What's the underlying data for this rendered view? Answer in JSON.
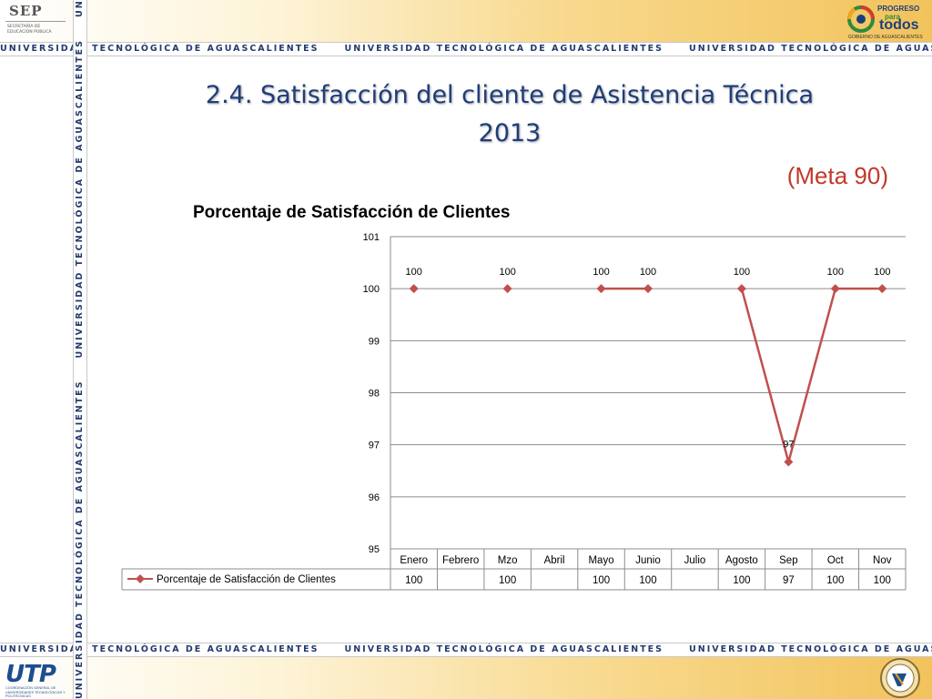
{
  "banner": {
    "text": "UNIVERSIDAD TECNOLÓGICA DE AGUASCALIENTES"
  },
  "logos": {
    "sep": {
      "title": "SEP",
      "subtitle_line1": "SECRETARÍA DE",
      "subtitle_line2": "EDUCACIÓN PÚBLICA"
    },
    "progreso": {
      "line1": "PROGRESO",
      "line2": "para",
      "line3": "todos",
      "line4": "GOBIERNO DE AGUASCALIENTES"
    },
    "utp": {
      "name": "UTP",
      "subtitle": "COORDINACIÓN GENERAL DE UNIVERSIDADES TECNOLÓGICAS Y POLITÉCNICAS"
    }
  },
  "slide": {
    "title_line1": "2.4. Satisfacción del cliente de Asistencia Técnica",
    "title_line2": "2013",
    "goal": "(Meta 90)"
  },
  "colors": {
    "series": "#c0504d",
    "title": "#1f3d7a",
    "goal": "#c0392b",
    "banner_text": "#233a6e"
  },
  "chart_data": {
    "type": "line",
    "title": "Porcentaje de Satisfacción de Clientes",
    "categories": [
      "Enero",
      "Febrero",
      "Mzo",
      "Abril",
      "Mayo",
      "Junio",
      "Julio",
      "Agosto",
      "Sep",
      "Oct",
      "Nov"
    ],
    "series": [
      {
        "name": "Porcentaje de Satisfacción de Clientes",
        "values": [
          100,
          null,
          100,
          null,
          100,
          100,
          null,
          100,
          96.67,
          100,
          100
        ],
        "labels": [
          "100",
          "",
          "100",
          "",
          "100",
          "100",
          "",
          "100",
          "97",
          "100",
          "100"
        ]
      }
    ],
    "ylim": [
      95,
      101
    ],
    "yticks": [
      "95",
      "96",
      "97",
      "98",
      "99",
      "100",
      "101"
    ],
    "grid": true,
    "legend": "data-table"
  }
}
